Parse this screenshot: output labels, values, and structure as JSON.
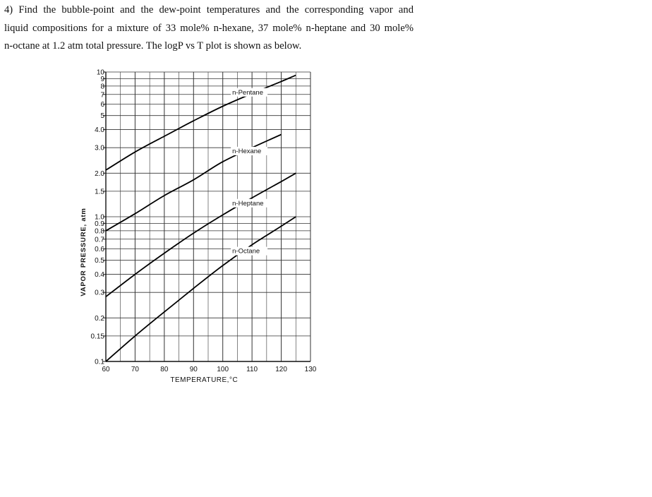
{
  "problem": {
    "lines": [
      "4)  Find the bubble-point and the dew-point temperatures and the corresponding vapor and",
      "liquid compositions for a mixture of 33 mole% n-hexane, 37 mole% n-heptane and 30 mole%",
      "n-octane at 1.2 atm total pressure. The logP vs T plot is shown as below."
    ]
  },
  "chart_data": {
    "type": "line",
    "title": "",
    "xlabel": "TEMPERATURE,°C",
    "ylabel": "VAPOR PRESSURE, atm",
    "xscale": "linear",
    "yscale": "log",
    "xlim": [
      60,
      130
    ],
    "ylim": [
      0.1,
      10
    ],
    "grid": true,
    "x_ticks": [
      60,
      70,
      80,
      90,
      100,
      110,
      120,
      130
    ],
    "x_tick_labels": [
      "60",
      "70",
      "80",
      "90",
      "100",
      "110",
      "120",
      "130"
    ],
    "y_ticks": [
      0.1,
      0.15,
      0.2,
      0.3,
      0.4,
      0.5,
      0.6,
      0.7,
      0.8,
      0.9,
      1.0,
      1.5,
      2.0,
      3.0,
      4.0,
      5,
      6,
      7,
      8,
      9,
      10
    ],
    "y_tick_labels": [
      "0.1",
      "0.15",
      "0.2",
      "0.3",
      "0.4",
      "0.5",
      "0.6",
      "0.7",
      "0.8",
      "0.9",
      "1.0",
      "1.5",
      "2.0",
      "3.0",
      "4.0",
      "5",
      "6",
      "7",
      "8",
      "9",
      "10"
    ],
    "series": [
      {
        "name": "n-Pentane",
        "x": [
          60,
          70,
          80,
          90,
          100,
          110,
          120,
          125
        ],
        "y": [
          2.1,
          2.8,
          3.6,
          4.6,
          5.8,
          7.1,
          8.6,
          9.5
        ]
      },
      {
        "name": "n-Hexane",
        "x": [
          60,
          70,
          80,
          90,
          100,
          110,
          120
        ],
        "y": [
          0.8,
          1.05,
          1.4,
          1.8,
          2.4,
          3.0,
          3.7
        ]
      },
      {
        "name": "n-Heptane",
        "x": [
          60,
          70,
          80,
          90,
          100,
          110,
          120,
          125
        ],
        "y": [
          0.28,
          0.4,
          0.56,
          0.77,
          1.03,
          1.35,
          1.75,
          2.0
        ]
      },
      {
        "name": "n-Octane",
        "x": [
          60,
          70,
          80,
          90,
          100,
          110,
          120,
          125
        ],
        "y": [
          0.1,
          0.15,
          0.22,
          0.32,
          0.46,
          0.64,
          0.86,
          1.0
        ]
      }
    ]
  }
}
